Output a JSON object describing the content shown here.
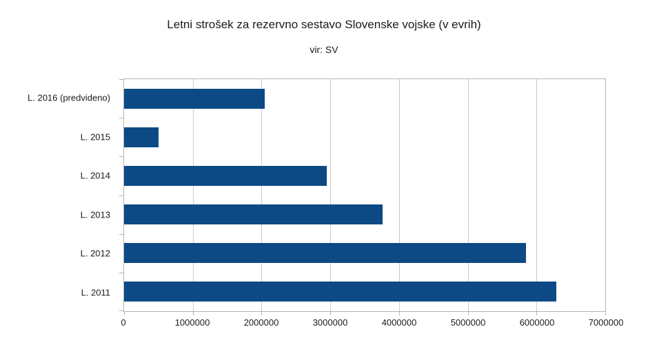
{
  "chart_data": {
    "type": "bar",
    "orientation": "horizontal",
    "title": "Letni strošek za rezervno sestavo Slovenske vojske (v evrih)",
    "subtitle": "vir: SV",
    "categories": [
      "L. 2016 (predvideno)",
      "L. 2015",
      "L. 2014",
      "L. 2013",
      "L. 2012",
      "L. 2011"
    ],
    "values": [
      2050000,
      500000,
      2950000,
      3760000,
      5850000,
      6290000
    ],
    "xlabel": "",
    "ylabel": "",
    "xlim": [
      0,
      7000000
    ],
    "xticks": [
      0,
      1000000,
      2000000,
      3000000,
      4000000,
      5000000,
      6000000,
      7000000
    ],
    "xtick_labels": [
      "0",
      "1000000",
      "2000000",
      "3000000",
      "4000000",
      "5000000",
      "6000000",
      "7000000"
    ],
    "grid": "vertical-only",
    "legend": "none",
    "colors": {
      "bar": "#0d4a85",
      "gridline": "#c9c9c9",
      "plot_border": "#b3b3b3",
      "tick": "#b3b3b3",
      "text": "#1a1a1a",
      "background": "#ffffff"
    }
  }
}
